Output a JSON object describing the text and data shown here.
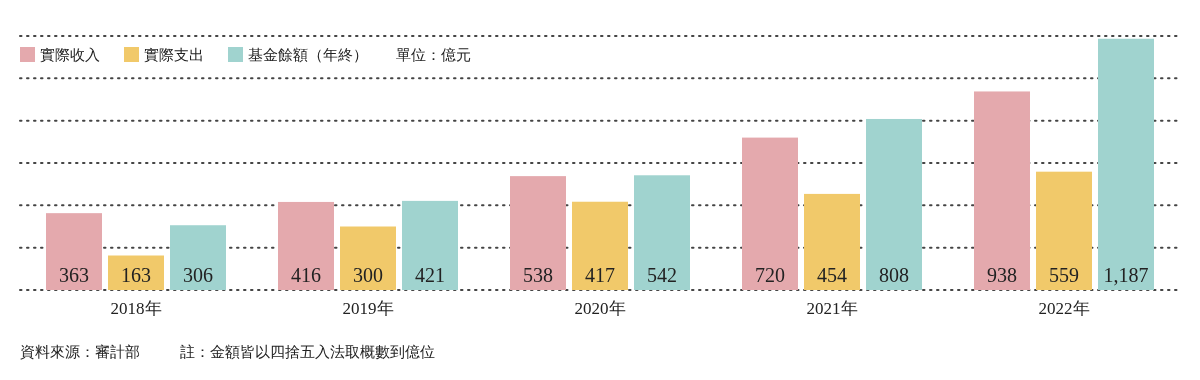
{
  "chart_data": {
    "type": "bar",
    "categories": [
      "2018年",
      "2019年",
      "2020年",
      "2021年",
      "2022年"
    ],
    "series": [
      {
        "name": "實際收入",
        "color": "#e4a9ad",
        "values": [
          363,
          416,
          538,
          720,
          938
        ],
        "value_labels": [
          "363",
          "416",
          "538",
          "720",
          "938"
        ]
      },
      {
        "name": "實際支出",
        "color": "#f1c96a",
        "values": [
          163,
          300,
          417,
          454,
          559
        ],
        "value_labels": [
          "163",
          "300",
          "417",
          "454",
          "559"
        ]
      },
      {
        "name": "基金餘額（年終）",
        "color": "#a0d3cf",
        "values": [
          306,
          421,
          542,
          808,
          1187
        ],
        "value_labels": [
          "306",
          "421",
          "542",
          "808",
          "1,187"
        ]
      }
    ],
    "ylim": [
      0,
      1200
    ],
    "yticks": [
      {
        "value": 0,
        "label": null
      },
      {
        "value": 200,
        "label": null
      },
      {
        "value": 400,
        "label": null
      },
      {
        "value": 600,
        "label": null
      },
      {
        "value": 800,
        "label": null
      },
      {
        "value": 1000,
        "label": null
      },
      {
        "value": 1200,
        "label": null
      }
    ],
    "tick_labels": "x",
    "grid": "y",
    "legend": "top left",
    "annotations": [
      "單位：億元",
      "資料來源：審計部",
      "註：金額皆以四捨五入法取概數到億位"
    ]
  }
}
